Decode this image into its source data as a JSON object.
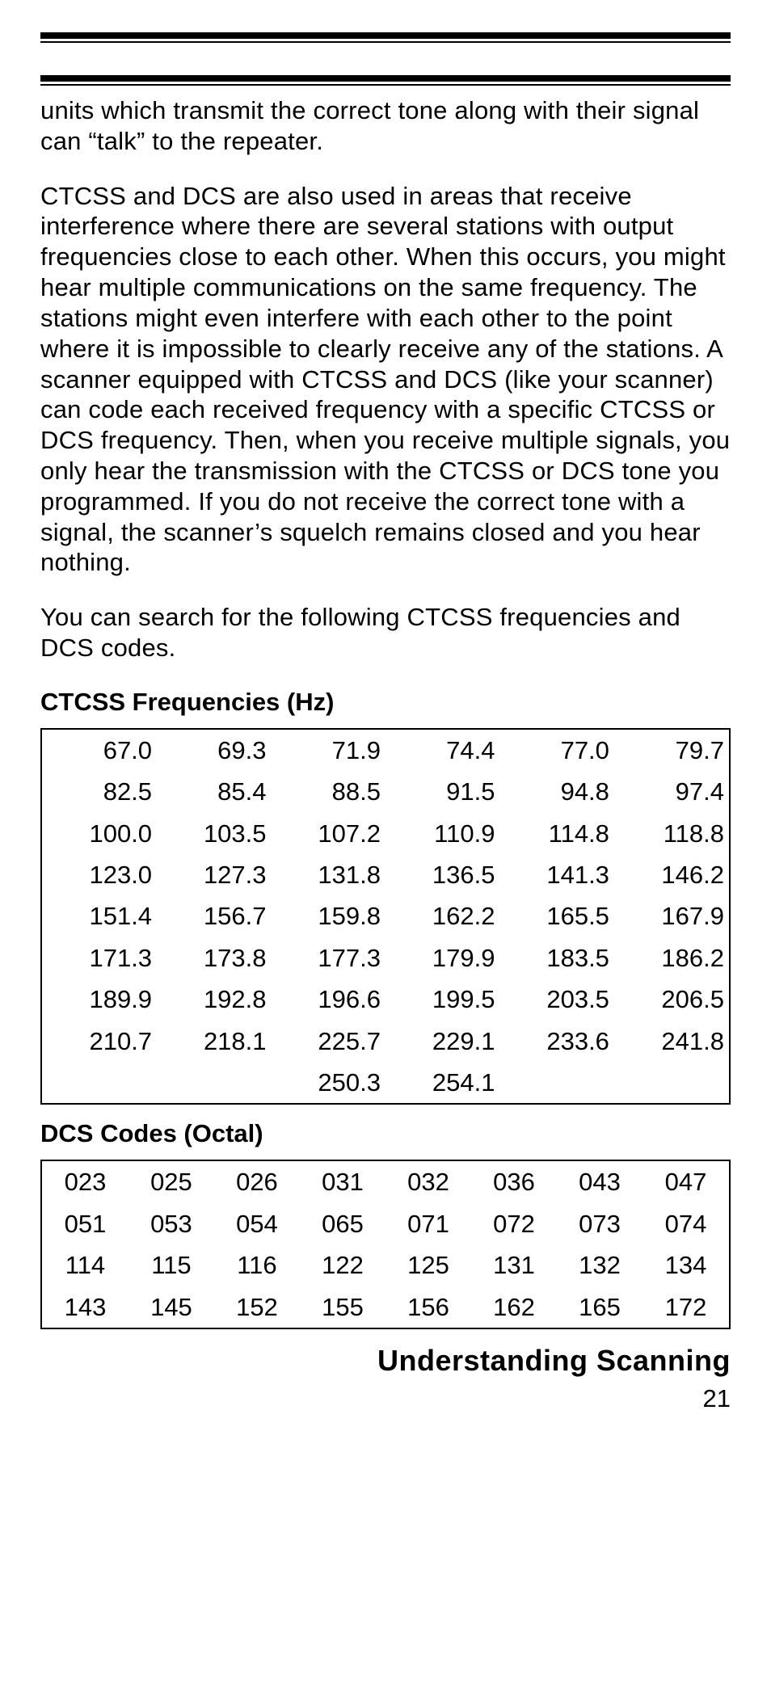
{
  "paragraphs": {
    "p1": "units which transmit the correct tone along with their signal can “talk” to the repeater.",
    "p2": "CTCSS and DCS are also used in areas that receive interference where there are several stations with output frequencies close to each other. When this occurs, you might hear multiple communications on the same frequency. The stations might even interfere with each other to the point where it is impossible to clearly receive any of the stations. A scanner equipped with CTCSS and DCS (like your scanner) can code each received frequency with a specific CTCSS or DCS frequency. Then, when you receive multiple signals, you only hear the transmission with the CTCSS or DCS tone you programmed. If you do not receive the correct tone with a signal, the scanner’s squelch remains closed and you hear nothing.",
    "p3": "You can search for the following CTCSS frequencies and DCS codes."
  },
  "headings": {
    "ctcss": "CTCSS Frequencies (Hz)",
    "dcs": "DCS Codes (Octal)"
  },
  "ctcss_table": {
    "type": "table",
    "columns": 6,
    "rows": [
      [
        "67.0",
        "69.3",
        "71.9",
        "74.4",
        "77.0",
        "79.7"
      ],
      [
        "82.5",
        "85.4",
        "88.5",
        "91.5",
        "94.8",
        "97.4"
      ],
      [
        "100.0",
        "103.5",
        "107.2",
        "110.9",
        "114.8",
        "118.8"
      ],
      [
        "123.0",
        "127.3",
        "131.8",
        "136.5",
        "141.3",
        "146.2"
      ],
      [
        "151.4",
        "156.7",
        "159.8",
        "162.2",
        "165.5",
        "167.9"
      ],
      [
        "171.3",
        "173.8",
        "177.3",
        "179.9",
        "183.5",
        "186.2"
      ],
      [
        "189.9",
        "192.8",
        "196.6",
        "199.5",
        "203.5",
        "206.5"
      ],
      [
        "210.7",
        "218.1",
        "225.7",
        "229.1",
        "233.6",
        "241.8"
      ],
      [
        "",
        "",
        "250.3",
        "254.1",
        "",
        ""
      ]
    ]
  },
  "dcs_table": {
    "type": "table",
    "columns": 8,
    "rows": [
      [
        "023",
        "025",
        "026",
        "031",
        "032",
        "036",
        "043",
        "047"
      ],
      [
        "051",
        "053",
        "054",
        "065",
        "071",
        "072",
        "073",
        "074"
      ],
      [
        "114",
        "115",
        "116",
        "122",
        "125",
        "131",
        "132",
        "134"
      ],
      [
        "143",
        "145",
        "152",
        "155",
        "156",
        "162",
        "165",
        "172"
      ]
    ]
  },
  "footer": {
    "section_title": "Understanding Scanning",
    "page_number": "21"
  }
}
